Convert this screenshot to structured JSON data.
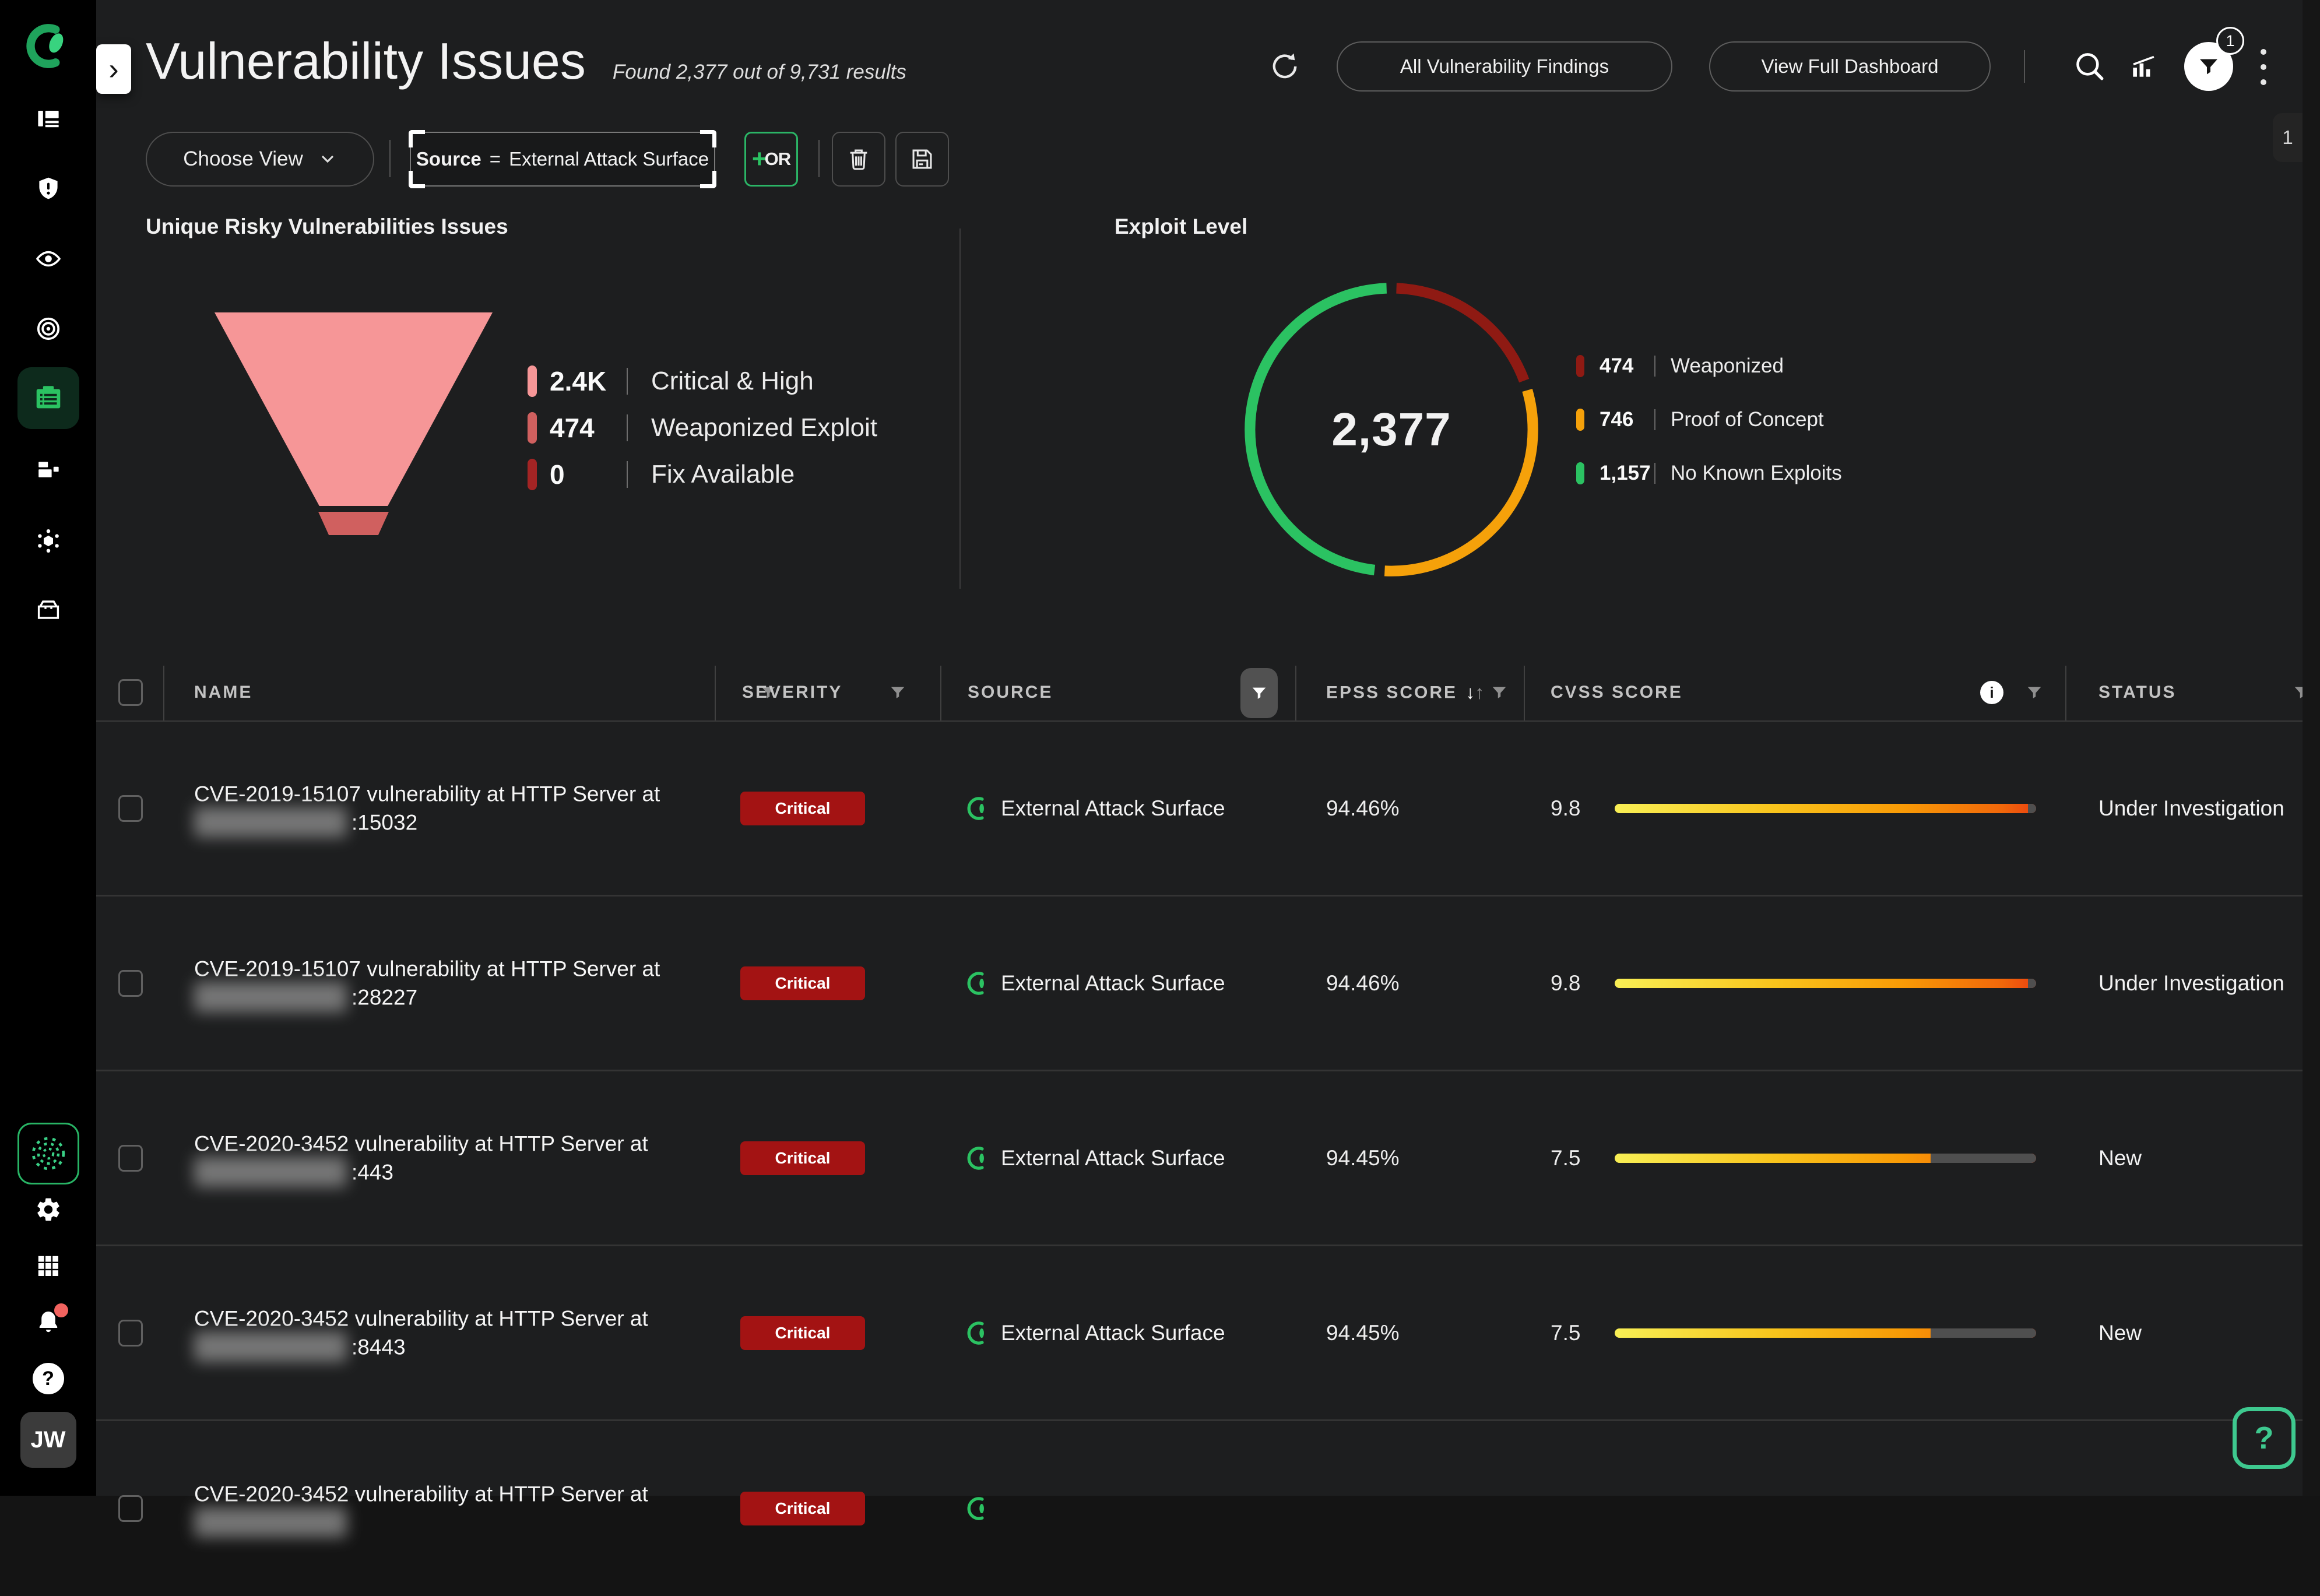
{
  "header": {
    "expand_glyph": "›",
    "title": "Vulnerability Issues",
    "subtitle": "Found 2,377 out of 9,731 results",
    "all_findings_button": "All Vulnerability Findings",
    "view_dashboard_button": "View Full Dashboard",
    "filter_count_badge": "1",
    "side_panel_tab": "1"
  },
  "filter_bar": {
    "choose_view_label": "Choose View",
    "chip_field": "Source",
    "chip_operator": "=",
    "chip_value": "External Attack Surface",
    "or_plus": "+",
    "or_label": "OR"
  },
  "chart_data": [
    {
      "type": "funnel",
      "title": "Unique Risky Vulnerabilities Issues",
      "stages": [
        {
          "value": "2.4K",
          "label": "Critical & High",
          "color": "#f69697"
        },
        {
          "value": "474",
          "label": "Weaponized Exploit",
          "color": "#d0605f"
        },
        {
          "value": "0",
          "label": "Fix Available",
          "color": "#a32424"
        }
      ]
    },
    {
      "type": "donut",
      "title": "Exploit Level",
      "center_total": "2,377",
      "segments": [
        {
          "value": 474,
          "display": "474",
          "label": "Weaponized",
          "color": "#8f1a13"
        },
        {
          "value": 746,
          "display": "746",
          "label": "Proof of Concept",
          "color": "#f5a10a"
        },
        {
          "value": 1157,
          "display": "1,157",
          "label": "No Known Exploits",
          "color": "#2bc262"
        }
      ]
    }
  ],
  "table": {
    "columns": {
      "name": "NAME",
      "severity": "SEVERITY",
      "source": "SOURCE",
      "epss": "EPSS SCORE",
      "cvss": "CVSS SCORE",
      "status": "STATUS"
    },
    "sort_down_glyph": "↓",
    "sort_up_glyph": "↑",
    "info_glyph": "i",
    "rows": [
      {
        "name": "CVE-2019-15107 vulnerability at HTTP Server at",
        "port": ":15032",
        "severity": "Critical",
        "source": "External Attack Surface",
        "epss": "94.46%",
        "cvss": "9.8",
        "status": "Under Investigation"
      },
      {
        "name": "CVE-2019-15107 vulnerability at HTTP Server at",
        "port": ":28227",
        "severity": "Critical",
        "source": "External Attack Surface",
        "epss": "94.46%",
        "cvss": "9.8",
        "status": "Under Investigation"
      },
      {
        "name": "CVE-2020-3452 vulnerability at HTTP Server at",
        "port": ":443",
        "severity": "Critical",
        "source": "External Attack Surface",
        "epss": "94.45%",
        "cvss": "7.5",
        "status": "New"
      },
      {
        "name": "CVE-2020-3452 vulnerability at HTTP Server at",
        "port": ":8443",
        "severity": "Critical",
        "source": "External Attack Surface",
        "epss": "94.45%",
        "cvss": "7.5",
        "status": "New"
      },
      {
        "name": "CVE-2020-3452 vulnerability at HTTP Server at",
        "port": "",
        "severity": "Critical",
        "source": "",
        "epss": "",
        "cvss": "",
        "status": ""
      }
    ]
  },
  "sidebar": {
    "avatar": "JW"
  },
  "floating": {
    "help_glyph": "?"
  },
  "colors": {
    "background": "#1d1e1f",
    "sidebar": "#000000",
    "accent_green": "#2bc262",
    "critical_red": "#a31313",
    "funnel_pink": "#f69697",
    "donut_red": "#8f1a13",
    "donut_orange": "#f5a10a",
    "donut_green": "#2bc262",
    "cvss_gradient_start": "#f8ef55",
    "cvss_gradient_end": "#ea4310",
    "cvss_track_gray": "#4f4f4f"
  }
}
